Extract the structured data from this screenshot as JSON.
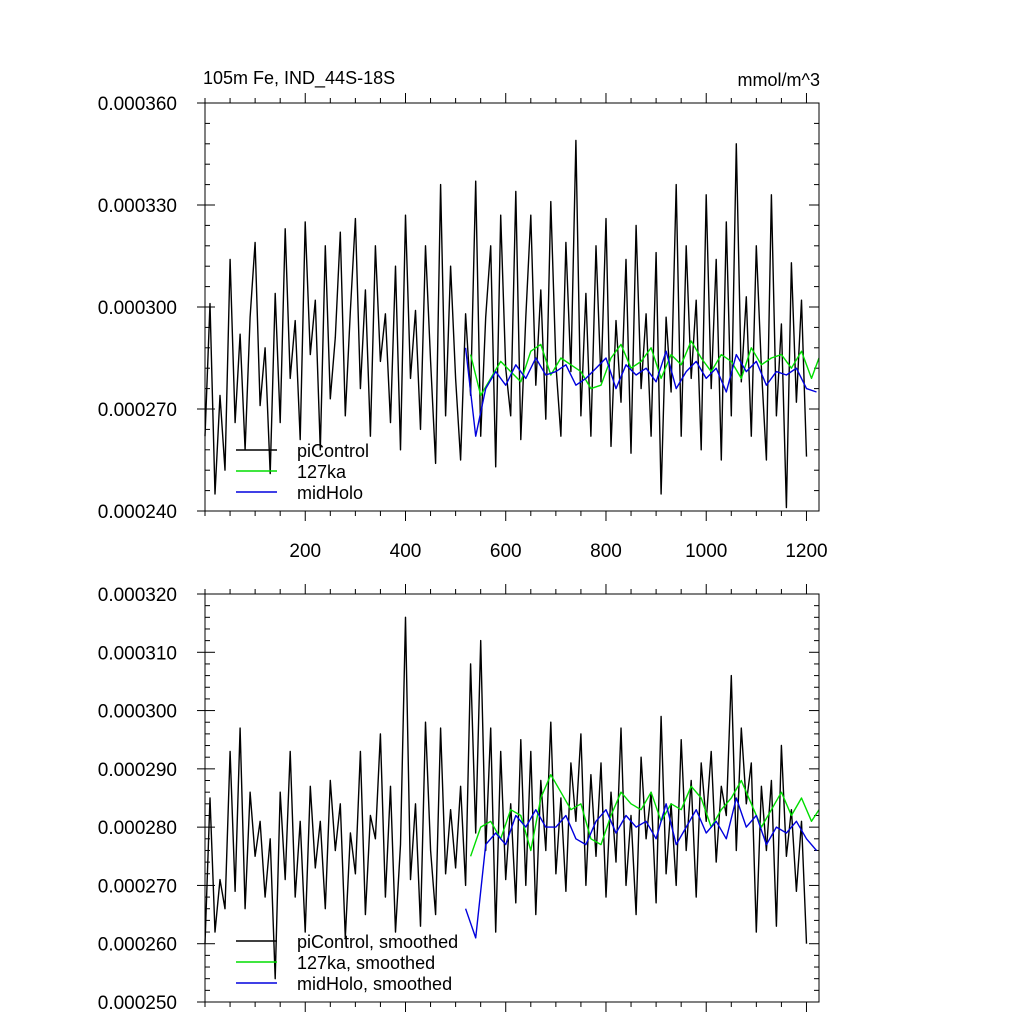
{
  "chart_data": [
    {
      "type": "line",
      "title": "105m Fe, IND_44S-18S",
      "units_label": "mmol/m^3",
      "xlim": [
        0,
        1225
      ],
      "ylim": [
        0.00024,
        0.00036
      ],
      "yticks": [
        0.00024,
        0.00027,
        0.0003,
        0.00033,
        0.00036
      ],
      "ytick_labels": [
        "0.000240",
        "0.000270",
        "0.000300",
        "0.000330",
        "0.000360"
      ],
      "xticks": [
        200,
        400,
        600,
        800,
        1000,
        1200
      ],
      "xtick_labels": [
        "200",
        "400",
        "600",
        "800",
        "1000",
        "1200"
      ],
      "legend_placement": "bottom-left",
      "series": [
        {
          "name": "piControl",
          "color": "#000000",
          "x": [
            0,
            10,
            20,
            30,
            40,
            50,
            60,
            70,
            80,
            90,
            100,
            110,
            120,
            130,
            140,
            150,
            160,
            170,
            180,
            190,
            200,
            210,
            220,
            230,
            240,
            250,
            260,
            270,
            280,
            290,
            300,
            310,
            320,
            330,
            340,
            350,
            360,
            370,
            380,
            390,
            400,
            410,
            420,
            430,
            440,
            450,
            460,
            470,
            480,
            490,
            500,
            510,
            520,
            530,
            540,
            550,
            560,
            570,
            580,
            590,
            600,
            610,
            620,
            630,
            640,
            650,
            660,
            670,
            680,
            690,
            700,
            710,
            720,
            730,
            740,
            750,
            760,
            770,
            780,
            790,
            800,
            810,
            820,
            830,
            840,
            850,
            860,
            870,
            880,
            890,
            900,
            910,
            920,
            930,
            940,
            950,
            960,
            970,
            980,
            990,
            1000,
            1010,
            1020,
            1030,
            1040,
            1050,
            1060,
            1070,
            1080,
            1090,
            1100,
            1110,
            1120,
            1130,
            1140,
            1150,
            1160,
            1170,
            1180,
            1190,
            1200
          ],
          "values": [
            0.000262,
            0.000301,
            0.000245,
            0.000274,
            0.000252,
            0.000314,
            0.000266,
            0.000292,
            0.000258,
            0.000297,
            0.000319,
            0.000271,
            0.000288,
            0.000251,
            0.000304,
            0.000266,
            0.000323,
            0.000279,
            0.000296,
            0.000261,
            0.000325,
            0.000286,
            0.000302,
            0.000258,
            0.000318,
            0.000273,
            0.000291,
            0.000322,
            0.000268,
            0.000299,
            0.000326,
            0.000276,
            0.000305,
            0.000262,
            0.000318,
            0.000284,
            0.000298,
            0.000266,
            0.000312,
            0.000258,
            0.000327,
            0.000279,
            0.000299,
            0.000264,
            0.000318,
            0.000284,
            0.000254,
            0.000336,
            0.000268,
            0.000312,
            0.000279,
            0.000255,
            0.000298,
            0.000274,
            0.000337,
            0.000262,
            0.000297,
            0.000318,
            0.000253,
            0.000327,
            0.000282,
            0.000268,
            0.000334,
            0.000261,
            0.000297,
            0.000327,
            0.000277,
            0.000305,
            0.000267,
            0.000331,
            0.000283,
            0.000262,
            0.000319,
            0.000281,
            0.000349,
            0.000268,
            0.000304,
            0.000262,
            0.000318,
            0.000278,
            0.000326,
            0.000259,
            0.000296,
            0.000272,
            0.000314,
            0.000257,
            0.000324,
            0.000276,
            0.000298,
            0.000262,
            0.000316,
            0.000245,
            0.000297,
            0.000275,
            0.000336,
            0.000262,
            0.000318,
            0.000279,
            0.000302,
            0.000258,
            0.000333,
            0.000276,
            0.000314,
            0.000255,
            0.000325,
            0.000268,
            0.000348,
            0.000278,
            0.000303,
            0.000262,
            0.000318,
            0.000282,
            0.000255,
            0.000333,
            0.000268,
            0.000295,
            0.000241,
            0.000313,
            0.000272,
            0.000302,
            0.000256
          ]
        },
        {
          "name": "127ka",
          "color": "#00dd00",
          "x": [
            530,
            550,
            570,
            590,
            610,
            630,
            650,
            670,
            690,
            710,
            730,
            750,
            770,
            790,
            810,
            830,
            850,
            870,
            890,
            910,
            930,
            950,
            970,
            990,
            1010,
            1030,
            1050,
            1070,
            1090,
            1110,
            1130,
            1150,
            1170,
            1190,
            1210,
            1225
          ],
          "values": [
            0.000286,
            0.000274,
            0.000279,
            0.000284,
            0.000281,
            0.000278,
            0.000287,
            0.000289,
            0.00028,
            0.000285,
            0.000283,
            0.000281,
            0.000276,
            0.000277,
            0.000285,
            0.000289,
            0.000282,
            0.000284,
            0.000288,
            0.000279,
            0.000286,
            0.000283,
            0.00029,
            0.000285,
            0.000281,
            0.000286,
            0.000284,
            0.000279,
            0.000288,
            0.000283,
            0.000285,
            0.000286,
            0.000282,
            0.000287,
            0.000279,
            0.000285
          ]
        },
        {
          "name": "midHolo",
          "color": "#0000dd",
          "x": [
            520,
            540,
            560,
            580,
            600,
            620,
            640,
            660,
            680,
            700,
            720,
            740,
            760,
            780,
            800,
            820,
            840,
            860,
            880,
            900,
            920,
            940,
            960,
            980,
            1000,
            1020,
            1040,
            1060,
            1080,
            1100,
            1120,
            1140,
            1160,
            1180,
            1200,
            1220
          ],
          "values": [
            0.000288,
            0.000262,
            0.000276,
            0.000281,
            0.000277,
            0.000283,
            0.000279,
            0.000285,
            0.00028,
            0.000281,
            0.000283,
            0.000277,
            0.000279,
            0.000282,
            0.000285,
            0.000276,
            0.000283,
            0.00028,
            0.000282,
            0.000278,
            0.000287,
            0.000276,
            0.000281,
            0.000284,
            0.000279,
            0.000282,
            0.000275,
            0.000286,
            0.000281,
            0.000284,
            0.000277,
            0.000281,
            0.00028,
            0.000282,
            0.000276,
            0.000275
          ]
        }
      ]
    },
    {
      "type": "line",
      "title": "",
      "xlim": [
        0,
        1225
      ],
      "ylim": [
        0.00025,
        0.00032
      ],
      "yticks": [
        0.00025,
        0.00026,
        0.00027,
        0.00028,
        0.00029,
        0.0003,
        0.00031,
        0.00032
      ],
      "ytick_labels": [
        "0.000250",
        "0.000260",
        "0.000270",
        "0.000280",
        "0.000290",
        "0.000300",
        "0.000310",
        "0.000320"
      ],
      "xticks": [
        200,
        400,
        600,
        800,
        1000,
        1200
      ],
      "legend_placement": "bottom-left",
      "series": [
        {
          "name": "piControl, smoothed",
          "color": "#000000",
          "x": [
            0,
            10,
            20,
            30,
            40,
            50,
            60,
            70,
            80,
            90,
            100,
            110,
            120,
            130,
            140,
            150,
            160,
            170,
            180,
            190,
            200,
            210,
            220,
            230,
            240,
            250,
            260,
            270,
            280,
            290,
            300,
            310,
            320,
            330,
            340,
            350,
            360,
            370,
            380,
            390,
            400,
            410,
            420,
            430,
            440,
            450,
            460,
            470,
            480,
            490,
            500,
            510,
            520,
            530,
            540,
            550,
            560,
            570,
            580,
            590,
            600,
            610,
            620,
            630,
            640,
            650,
            660,
            670,
            680,
            690,
            700,
            710,
            720,
            730,
            740,
            750,
            760,
            770,
            780,
            790,
            800,
            810,
            820,
            830,
            840,
            850,
            860,
            870,
            880,
            890,
            900,
            910,
            920,
            930,
            940,
            950,
            960,
            970,
            980,
            990,
            1000,
            1010,
            1020,
            1030,
            1040,
            1050,
            1060,
            1070,
            1080,
            1090,
            1100,
            1110,
            1120,
            1130,
            1140,
            1150,
            1160,
            1170,
            1180,
            1190,
            1200
          ],
          "values": [
            0.00026,
            0.000285,
            0.000262,
            0.000271,
            0.000266,
            0.000293,
            0.000269,
            0.000297,
            0.000266,
            0.000286,
            0.000275,
            0.000281,
            0.000268,
            0.000278,
            0.000254,
            0.000286,
            0.000271,
            0.000293,
            0.000268,
            0.000281,
            0.000262,
            0.000287,
            0.000273,
            0.000281,
            0.000266,
            0.000288,
            0.000276,
            0.000284,
            0.000261,
            0.000279,
            0.000272,
            0.000293,
            0.000265,
            0.000282,
            0.000278,
            0.000296,
            0.000268,
            0.000287,
            0.000262,
            0.000277,
            0.000316,
            0.000271,
            0.000284,
            0.000263,
            0.000298,
            0.000276,
            0.000265,
            0.000297,
            0.000272,
            0.000283,
            0.000273,
            0.000287,
            0.00027,
            0.000308,
            0.000279,
            0.000312,
            0.000276,
            0.000297,
            0.000262,
            0.000293,
            0.000271,
            0.000284,
            0.000267,
            0.000295,
            0.00027,
            0.000293,
            0.000265,
            0.000288,
            0.000276,
            0.000298,
            0.000272,
            0.000285,
            0.000269,
            0.000291,
            0.000281,
            0.000296,
            0.00027,
            0.000289,
            0.000275,
            0.000291,
            0.000268,
            0.000286,
            0.000274,
            0.000297,
            0.00027,
            0.000282,
            0.000265,
            0.000292,
            0.000278,
            0.000286,
            0.000267,
            0.000299,
            0.000272,
            0.000284,
            0.00027,
            0.000295,
            0.000276,
            0.000288,
            0.000268,
            0.000291,
            0.000281,
            0.000293,
            0.000274,
            0.000287,
            0.000282,
            0.000306,
            0.000276,
            0.000297,
            0.000284,
            0.000291,
            0.000262,
            0.000287,
            0.000276,
            0.000288,
            0.000263,
            0.000294,
            0.000275,
            0.000283,
            0.000269,
            0.000281,
            0.00026
          ]
        },
        {
          "name": "127ka, smoothed",
          "color": "#00dd00",
          "x": [
            530,
            550,
            570,
            590,
            610,
            630,
            650,
            670,
            690,
            710,
            730,
            750,
            770,
            790,
            810,
            830,
            850,
            870,
            890,
            910,
            930,
            950,
            970,
            990,
            1010,
            1030,
            1050,
            1070,
            1090,
            1110,
            1130,
            1150,
            1170,
            1190,
            1210,
            1225
          ],
          "values": [
            0.000275,
            0.00028,
            0.000281,
            0.000278,
            0.000283,
            0.000282,
            0.000276,
            0.000285,
            0.000289,
            0.000286,
            0.000283,
            0.000284,
            0.000278,
            0.000277,
            0.000282,
            0.000286,
            0.000284,
            0.000283,
            0.000286,
            0.000281,
            0.000284,
            0.000283,
            0.000287,
            0.000285,
            0.00028,
            0.000283,
            0.000285,
            0.000288,
            0.000284,
            0.00028,
            0.000283,
            0.000286,
            0.000282,
            0.000285,
            0.000281,
            0.000283
          ]
        },
        {
          "name": "midHolo, smoothed",
          "color": "#0000dd",
          "x": [
            520,
            540,
            560,
            580,
            600,
            620,
            640,
            660,
            680,
            700,
            720,
            740,
            760,
            780,
            800,
            820,
            840,
            860,
            880,
            900,
            920,
            940,
            960,
            980,
            1000,
            1020,
            1040,
            1060,
            1080,
            1100,
            1120,
            1140,
            1160,
            1180,
            1200,
            1220
          ],
          "values": [
            0.000266,
            0.000261,
            0.000277,
            0.000279,
            0.000277,
            0.000282,
            0.00028,
            0.000283,
            0.00028,
            0.00028,
            0.000282,
            0.000278,
            0.000277,
            0.000281,
            0.000283,
            0.000279,
            0.000282,
            0.00028,
            0.000281,
            0.000278,
            0.000284,
            0.000277,
            0.00028,
            0.000283,
            0.000279,
            0.000281,
            0.000278,
            0.000285,
            0.00028,
            0.000282,
            0.000277,
            0.00028,
            0.000279,
            0.000281,
            0.000278,
            0.000276
          ]
        }
      ]
    }
  ]
}
